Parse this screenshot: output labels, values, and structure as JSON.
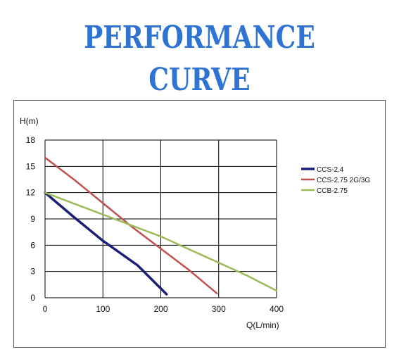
{
  "title": "PERFORMANCE CURVE",
  "chart_data": {
    "type": "line",
    "xlabel": "Q(L/min)",
    "ylabel": "H(m)",
    "xlim": [
      0,
      400
    ],
    "ylim": [
      0,
      18
    ],
    "xticks": [
      0,
      100,
      200,
      300,
      400
    ],
    "yticks": [
      0,
      3,
      6,
      9,
      12,
      15,
      18
    ],
    "grid": true,
    "legend_position": "right",
    "series": [
      {
        "name": "CCS-2.4",
        "color": "#1c1f78",
        "x": [
          0,
          50,
          100,
          160,
          210
        ],
        "y": [
          12,
          9.2,
          6.5,
          3.7,
          0.4
        ]
      },
      {
        "name": "CCS-2.75 2G/3G",
        "color": "#c0504d",
        "x": [
          0,
          50,
          100,
          150,
          200,
          250,
          297
        ],
        "y": [
          16,
          13.5,
          10.8,
          8.1,
          5.6,
          3.1,
          0.5
        ]
      },
      {
        "name": "CCB-2.75",
        "color": "#9bbb59",
        "x": [
          0,
          100,
          200,
          300,
          350,
          400
        ],
        "y": [
          12,
          9.5,
          7.0,
          4.0,
          2.5,
          0.8
        ]
      }
    ]
  }
}
